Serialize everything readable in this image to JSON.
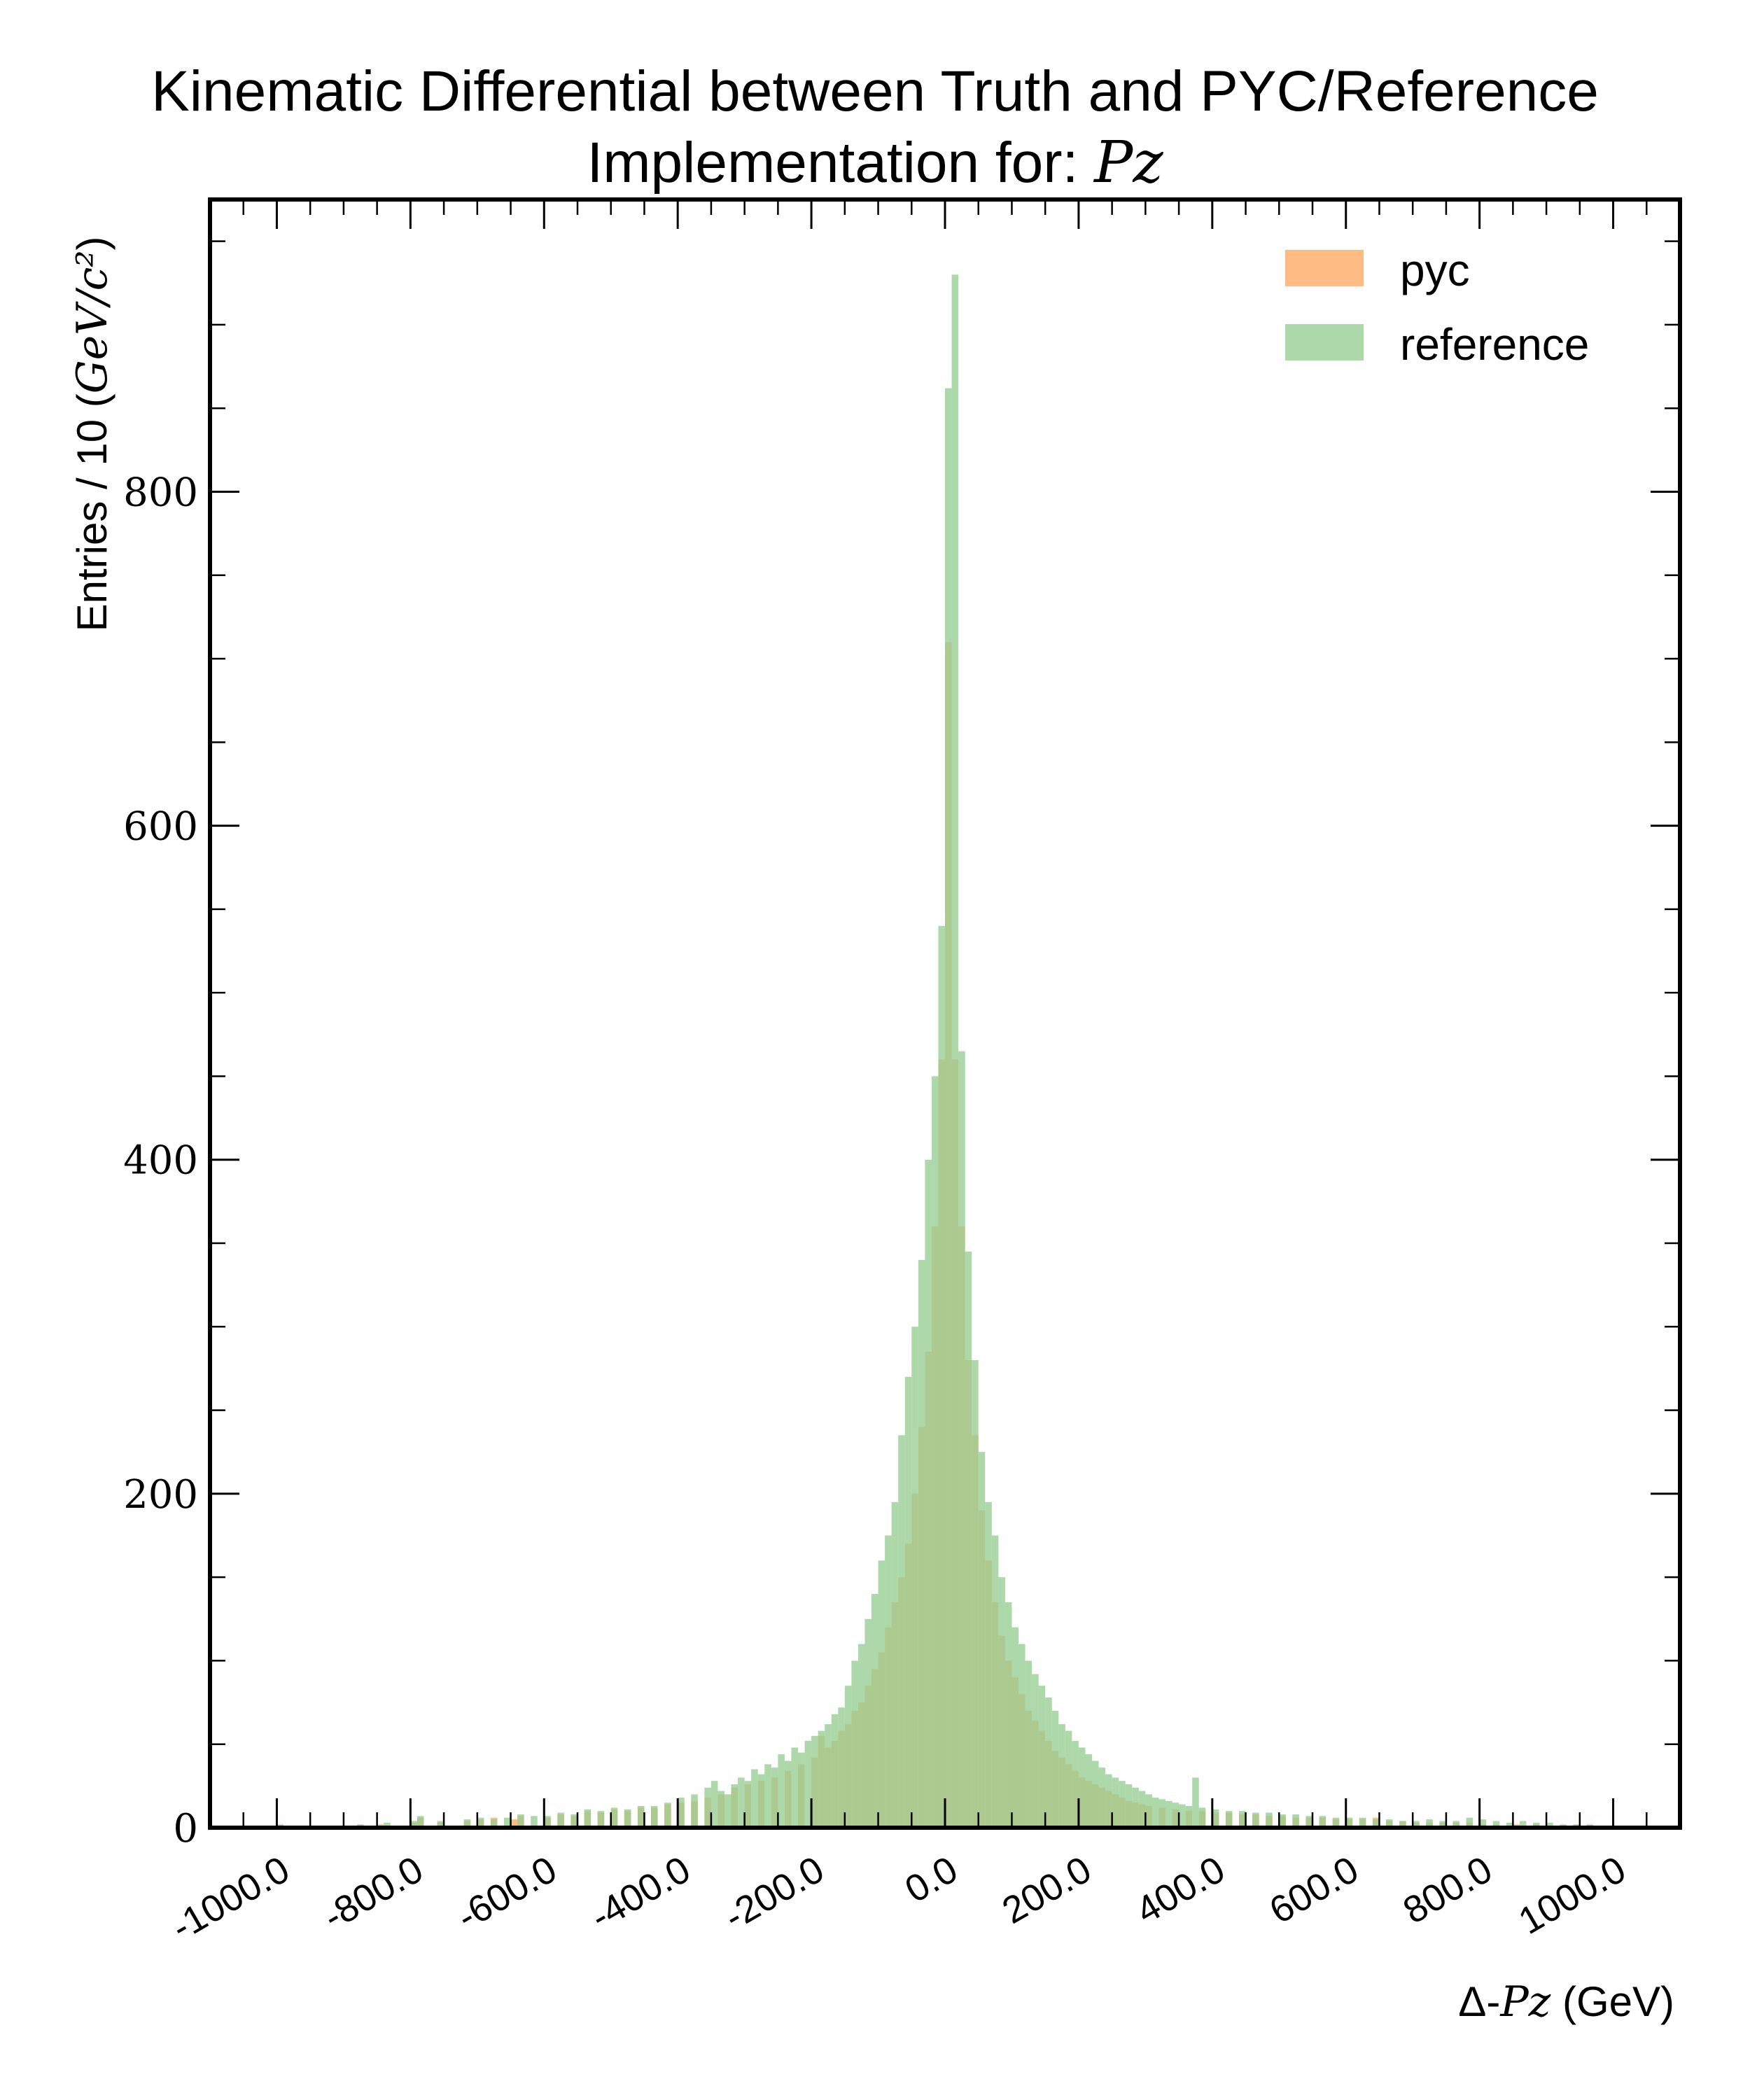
{
  "chart_data": {
    "type": "histogram",
    "title_line1": "Kinematic Differential between Truth and PYC/Reference",
    "title_line2_prefix": "Implementation for: ",
    "title_line2_math": "Pz",
    "xlabel_prefix": "Δ-",
    "xlabel_math": "Pz",
    "xlabel_suffix": " (GeV)",
    "ylabel_prefix": "Entries / 10 (",
    "ylabel_math": "GeV/c²",
    "ylabel_suffix": ")",
    "xlim": [
      -1100,
      1100
    ],
    "ylim": [
      0,
      975
    ],
    "xticks": [
      -1000,
      -800,
      -600,
      -400,
      -200,
      0,
      200,
      400,
      600,
      800,
      1000
    ],
    "xtick_labels": [
      "-1000.0",
      "-800.0",
      "-600.0",
      "-400.0",
      "-200.0",
      "0.0",
      "200.0",
      "400.0",
      "600.0",
      "800.0",
      "1000.0"
    ],
    "yticks": [
      0,
      200,
      400,
      600,
      800
    ],
    "ytick_labels": [
      "0",
      "200",
      "400",
      "600",
      "800"
    ],
    "bin_width": 10,
    "legend_position": "top-right",
    "grid": false,
    "series": [
      {
        "name": "pyc",
        "color": "#ffbb84",
        "bins": [
          [
            -1000,
            1
          ],
          [
            -960,
            1
          ],
          [
            -900,
            1
          ],
          [
            -850,
            2
          ],
          [
            -800,
            3
          ],
          [
            -790,
            6
          ],
          [
            -760,
            3
          ],
          [
            -720,
            4
          ],
          [
            -700,
            5
          ],
          [
            -680,
            6
          ],
          [
            -650,
            5
          ],
          [
            -640,
            7
          ],
          [
            -600,
            6
          ],
          [
            -580,
            8
          ],
          [
            -560,
            7
          ],
          [
            -540,
            10
          ],
          [
            -520,
            9
          ],
          [
            -500,
            11
          ],
          [
            -480,
            10
          ],
          [
            -460,
            12
          ],
          [
            -440,
            12
          ],
          [
            -420,
            14
          ],
          [
            -400,
            15
          ],
          [
            -380,
            16
          ],
          [
            -360,
            18
          ],
          [
            -340,
            20
          ],
          [
            -320,
            24
          ],
          [
            -300,
            26
          ],
          [
            -280,
            28
          ],
          [
            -260,
            30
          ],
          [
            -240,
            34
          ],
          [
            -220,
            38
          ],
          [
            -200,
            42
          ],
          [
            -190,
            55
          ],
          [
            -180,
            48
          ],
          [
            -170,
            52
          ],
          [
            -160,
            58
          ],
          [
            -150,
            62
          ],
          [
            -140,
            70
          ],
          [
            -130,
            75
          ],
          [
            -120,
            85
          ],
          [
            -110,
            95
          ],
          [
            -100,
            105
          ],
          [
            -90,
            120
          ],
          [
            -80,
            135
          ],
          [
            -70,
            150
          ],
          [
            -60,
            170
          ],
          [
            -50,
            200
          ],
          [
            -40,
            240
          ],
          [
            -30,
            285
          ],
          [
            -20,
            360
          ],
          [
            -10,
            460
          ],
          [
            0,
            710
          ],
          [
            10,
            460
          ],
          [
            20,
            360
          ],
          [
            30,
            280
          ],
          [
            40,
            235
          ],
          [
            50,
            190
          ],
          [
            60,
            160
          ],
          [
            70,
            135
          ],
          [
            80,
            115
          ],
          [
            90,
            100
          ],
          [
            100,
            90
          ],
          [
            110,
            80
          ],
          [
            120,
            70
          ],
          [
            130,
            64
          ],
          [
            140,
            58
          ],
          [
            150,
            52
          ],
          [
            160,
            46
          ],
          [
            170,
            42
          ],
          [
            180,
            38
          ],
          [
            190,
            34
          ],
          [
            200,
            30
          ],
          [
            210,
            28
          ],
          [
            220,
            26
          ],
          [
            230,
            24
          ],
          [
            240,
            22
          ],
          [
            250,
            20
          ],
          [
            260,
            18
          ],
          [
            270,
            16
          ],
          [
            280,
            15
          ],
          [
            290,
            14
          ],
          [
            300,
            13
          ],
          [
            320,
            12
          ],
          [
            340,
            11
          ],
          [
            360,
            10
          ],
          [
            380,
            10
          ],
          [
            400,
            9
          ],
          [
            420,
            9
          ],
          [
            440,
            8
          ],
          [
            460,
            8
          ],
          [
            480,
            7
          ],
          [
            500,
            7
          ],
          [
            520,
            6
          ],
          [
            540,
            6
          ],
          [
            560,
            6
          ],
          [
            580,
            5
          ],
          [
            600,
            5
          ],
          [
            620,
            5
          ],
          [
            640,
            6
          ],
          [
            660,
            4
          ],
          [
            680,
            4
          ],
          [
            700,
            3
          ],
          [
            720,
            3
          ],
          [
            740,
            3
          ],
          [
            760,
            3
          ],
          [
            780,
            3
          ],
          [
            800,
            2
          ],
          [
            820,
            2
          ],
          [
            850,
            2
          ],
          [
            880,
            2
          ],
          [
            900,
            1
          ],
          [
            920,
            1
          ],
          [
            950,
            1
          ],
          [
            980,
            1
          ]
        ]
      },
      {
        "name": "reference",
        "color": "#95cd92",
        "bins": [
          [
            -1000,
            2
          ],
          [
            -960,
            1
          ],
          [
            -920,
            1
          ],
          [
            -880,
            2
          ],
          [
            -840,
            3
          ],
          [
            -800,
            4
          ],
          [
            -790,
            7
          ],
          [
            -760,
            4
          ],
          [
            -720,
            5
          ],
          [
            -700,
            6
          ],
          [
            -680,
            5
          ],
          [
            -660,
            6
          ],
          [
            -640,
            8
          ],
          [
            -620,
            7
          ],
          [
            -600,
            7
          ],
          [
            -580,
            9
          ],
          [
            -560,
            8
          ],
          [
            -540,
            11
          ],
          [
            -520,
            10
          ],
          [
            -500,
            12
          ],
          [
            -480,
            11
          ],
          [
            -460,
            13
          ],
          [
            -440,
            13
          ],
          [
            -420,
            15
          ],
          [
            -400,
            18
          ],
          [
            -380,
            20
          ],
          [
            -360,
            24
          ],
          [
            -350,
            28
          ],
          [
            -340,
            22
          ],
          [
            -330,
            20
          ],
          [
            -320,
            26
          ],
          [
            -310,
            30
          ],
          [
            -300,
            28
          ],
          [
            -290,
            35
          ],
          [
            -280,
            32
          ],
          [
            -270,
            38
          ],
          [
            -260,
            36
          ],
          [
            -250,
            44
          ],
          [
            -240,
            40
          ],
          [
            -230,
            48
          ],
          [
            -220,
            45
          ],
          [
            -210,
            52
          ],
          [
            -200,
            55
          ],
          [
            -190,
            58
          ],
          [
            -180,
            62
          ],
          [
            -170,
            68
          ],
          [
            -160,
            72
          ],
          [
            -150,
            85
          ],
          [
            -140,
            100
          ],
          [
            -130,
            110
          ],
          [
            -120,
            125
          ],
          [
            -110,
            140
          ],
          [
            -100,
            160
          ],
          [
            -90,
            175
          ],
          [
            -80,
            195
          ],
          [
            -70,
            235
          ],
          [
            -60,
            270
          ],
          [
            -50,
            300
          ],
          [
            -40,
            340
          ],
          [
            -30,
            400
          ],
          [
            -20,
            450
          ],
          [
            -10,
            540
          ],
          [
            0,
            862
          ],
          [
            10,
            930
          ],
          [
            20,
            465
          ],
          [
            30,
            345
          ],
          [
            40,
            280
          ],
          [
            50,
            225
          ],
          [
            60,
            195
          ],
          [
            70,
            175
          ],
          [
            80,
            150
          ],
          [
            90,
            135
          ],
          [
            100,
            120
          ],
          [
            110,
            110
          ],
          [
            120,
            100
          ],
          [
            130,
            92
          ],
          [
            140,
            85
          ],
          [
            150,
            78
          ],
          [
            160,
            70
          ],
          [
            170,
            62
          ],
          [
            180,
            58
          ],
          [
            190,
            52
          ],
          [
            200,
            48
          ],
          [
            210,
            44
          ],
          [
            220,
            40
          ],
          [
            230,
            36
          ],
          [
            240,
            32
          ],
          [
            250,
            30
          ],
          [
            260,
            28
          ],
          [
            270,
            26
          ],
          [
            280,
            24
          ],
          [
            290,
            22
          ],
          [
            300,
            20
          ],
          [
            310,
            18
          ],
          [
            320,
            17
          ],
          [
            330,
            16
          ],
          [
            340,
            15
          ],
          [
            350,
            14
          ],
          [
            360,
            13
          ],
          [
            370,
            30
          ],
          [
            380,
            12
          ],
          [
            400,
            11
          ],
          [
            420,
            10
          ],
          [
            440,
            10
          ],
          [
            460,
            9
          ],
          [
            480,
            9
          ],
          [
            500,
            8
          ],
          [
            520,
            8
          ],
          [
            540,
            7
          ],
          [
            560,
            7
          ],
          [
            580,
            6
          ],
          [
            600,
            6
          ],
          [
            620,
            6
          ],
          [
            640,
            5
          ],
          [
            660,
            5
          ],
          [
            680,
            4
          ],
          [
            700,
            4
          ],
          [
            720,
            5
          ],
          [
            740,
            4
          ],
          [
            760,
            4
          ],
          [
            780,
            6
          ],
          [
            800,
            5
          ],
          [
            820,
            4
          ],
          [
            840,
            3
          ],
          [
            860,
            4
          ],
          [
            880,
            3
          ],
          [
            900,
            3
          ],
          [
            920,
            2
          ],
          [
            940,
            2
          ],
          [
            960,
            2
          ],
          [
            980,
            1
          ]
        ]
      }
    ]
  }
}
